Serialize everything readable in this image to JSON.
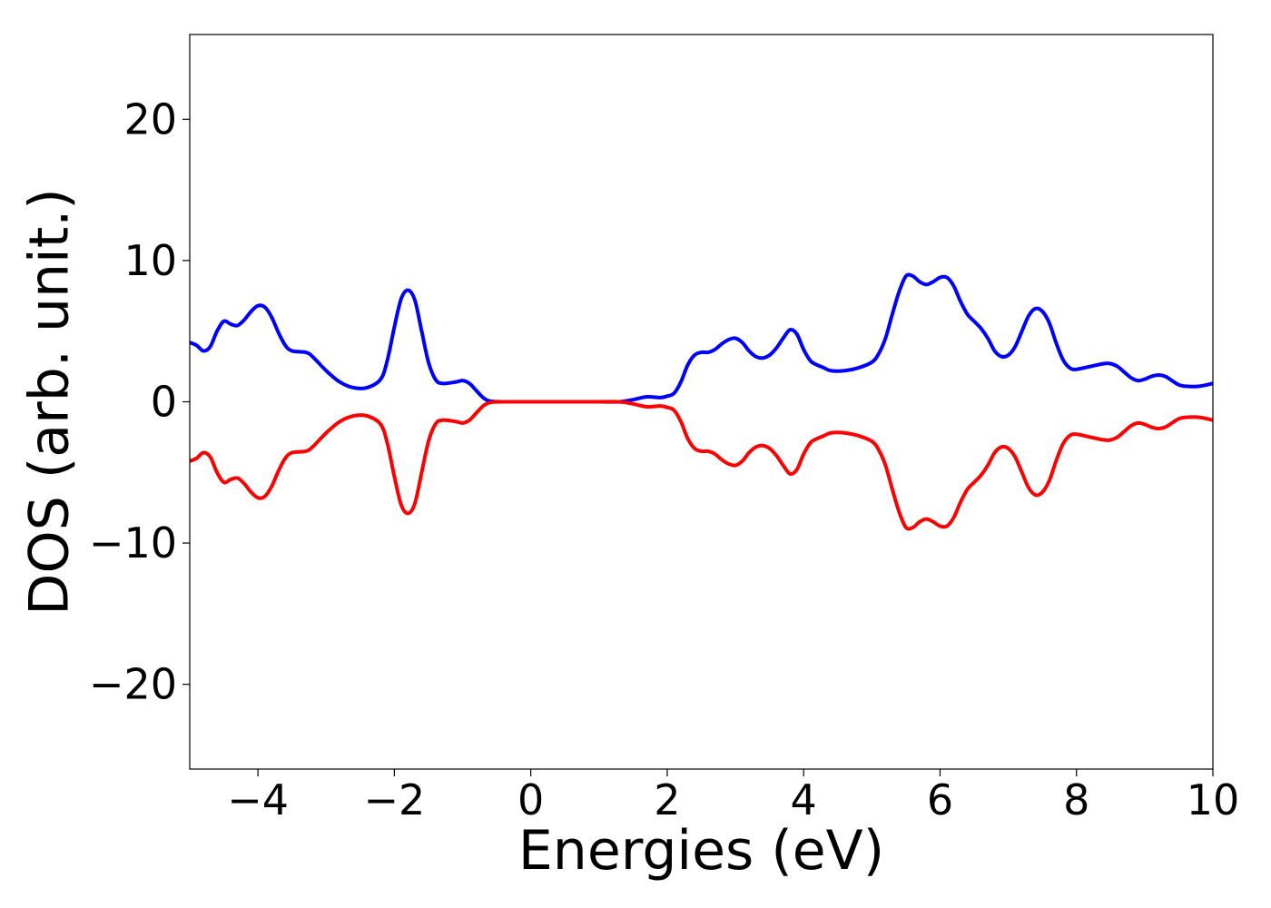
{
  "chart_data": {
    "type": "line",
    "title": "",
    "xlabel": "Energies (eV)",
    "ylabel": "DOS (arb. unit.)",
    "xlim": [
      -5,
      10
    ],
    "ylim": [
      -26,
      26
    ],
    "grid": false,
    "x_ticks": [
      -4,
      -2,
      0,
      2,
      4,
      6,
      8,
      10
    ],
    "y_ticks": [
      -20,
      -10,
      0,
      10,
      20
    ],
    "x_tick_labels": [
      "−4",
      "−2",
      "0",
      "2",
      "4",
      "6",
      "8",
      "10"
    ],
    "y_tick_labels": [
      "−20",
      "−10",
      "0",
      "10",
      "20"
    ],
    "series": [
      {
        "color": "#0000ff",
        "points": [
          [
            -5.0,
            4.2
          ],
          [
            -4.9,
            4.0
          ],
          [
            -4.8,
            3.6
          ],
          [
            -4.7,
            3.9
          ],
          [
            -4.6,
            5.0
          ],
          [
            -4.5,
            5.7
          ],
          [
            -4.4,
            5.5
          ],
          [
            -4.3,
            5.4
          ],
          [
            -4.2,
            5.8
          ],
          [
            -4.1,
            6.4
          ],
          [
            -4.0,
            6.8
          ],
          [
            -3.9,
            6.7
          ],
          [
            -3.8,
            6.0
          ],
          [
            -3.7,
            4.9
          ],
          [
            -3.6,
            4.0
          ],
          [
            -3.5,
            3.6
          ],
          [
            -3.3,
            3.5
          ],
          [
            -3.2,
            3.2
          ],
          [
            -3.0,
            2.2
          ],
          [
            -2.8,
            1.4
          ],
          [
            -2.6,
            1.0
          ],
          [
            -2.4,
            1.0
          ],
          [
            -2.2,
            1.6
          ],
          [
            -2.1,
            3.0
          ],
          [
            -2.0,
            5.3
          ],
          [
            -1.9,
            7.3
          ],
          [
            -1.8,
            7.9
          ],
          [
            -1.7,
            7.2
          ],
          [
            -1.6,
            5.0
          ],
          [
            -1.5,
            2.8
          ],
          [
            -1.4,
            1.6
          ],
          [
            -1.3,
            1.3
          ],
          [
            -1.1,
            1.4
          ],
          [
            -1.0,
            1.5
          ],
          [
            -0.9,
            1.3
          ],
          [
            -0.8,
            0.8
          ],
          [
            -0.7,
            0.3
          ],
          [
            -0.6,
            0.05
          ],
          [
            -0.4,
            0.0
          ],
          [
            0.0,
            0.0
          ],
          [
            0.5,
            0.0
          ],
          [
            1.0,
            0.0
          ],
          [
            1.3,
            0.0
          ],
          [
            1.5,
            0.15
          ],
          [
            1.7,
            0.35
          ],
          [
            1.9,
            0.3
          ],
          [
            2.0,
            0.4
          ],
          [
            2.1,
            0.6
          ],
          [
            2.2,
            1.4
          ],
          [
            2.3,
            2.6
          ],
          [
            2.4,
            3.3
          ],
          [
            2.5,
            3.5
          ],
          [
            2.6,
            3.5
          ],
          [
            2.7,
            3.7
          ],
          [
            2.8,
            4.1
          ],
          [
            2.9,
            4.4
          ],
          [
            3.0,
            4.5
          ],
          [
            3.1,
            4.2
          ],
          [
            3.2,
            3.6
          ],
          [
            3.3,
            3.2
          ],
          [
            3.4,
            3.1
          ],
          [
            3.5,
            3.3
          ],
          [
            3.6,
            3.8
          ],
          [
            3.7,
            4.5
          ],
          [
            3.8,
            5.1
          ],
          [
            3.9,
            4.8
          ],
          [
            4.0,
            3.7
          ],
          [
            4.1,
            2.9
          ],
          [
            4.2,
            2.6
          ],
          [
            4.3,
            2.4
          ],
          [
            4.4,
            2.2
          ],
          [
            4.6,
            2.2
          ],
          [
            4.8,
            2.4
          ],
          [
            5.0,
            2.8
          ],
          [
            5.1,
            3.4
          ],
          [
            5.2,
            4.5
          ],
          [
            5.3,
            6.2
          ],
          [
            5.4,
            7.8
          ],
          [
            5.5,
            8.9
          ],
          [
            5.6,
            8.9
          ],
          [
            5.7,
            8.5
          ],
          [
            5.8,
            8.3
          ],
          [
            5.9,
            8.5
          ],
          [
            6.0,
            8.8
          ],
          [
            6.1,
            8.8
          ],
          [
            6.2,
            8.2
          ],
          [
            6.3,
            7.1
          ],
          [
            6.4,
            6.2
          ],
          [
            6.5,
            5.7
          ],
          [
            6.6,
            5.2
          ],
          [
            6.7,
            4.5
          ],
          [
            6.8,
            3.6
          ],
          [
            6.9,
            3.2
          ],
          [
            7.0,
            3.3
          ],
          [
            7.1,
            3.9
          ],
          [
            7.2,
            5.0
          ],
          [
            7.3,
            6.1
          ],
          [
            7.4,
            6.6
          ],
          [
            7.5,
            6.4
          ],
          [
            7.6,
            5.6
          ],
          [
            7.7,
            4.2
          ],
          [
            7.8,
            3.0
          ],
          [
            7.9,
            2.4
          ],
          [
            8.0,
            2.3
          ],
          [
            8.2,
            2.5
          ],
          [
            8.4,
            2.7
          ],
          [
            8.5,
            2.7
          ],
          [
            8.6,
            2.5
          ],
          [
            8.7,
            2.1
          ],
          [
            8.8,
            1.7
          ],
          [
            8.9,
            1.5
          ],
          [
            9.0,
            1.6
          ],
          [
            9.1,
            1.8
          ],
          [
            9.2,
            1.9
          ],
          [
            9.3,
            1.8
          ],
          [
            9.4,
            1.5
          ],
          [
            9.5,
            1.2
          ],
          [
            9.6,
            1.1
          ],
          [
            9.8,
            1.1
          ],
          [
            10.0,
            1.3
          ]
        ]
      },
      {
        "color": "#ff0000",
        "points": [
          [
            -5.0,
            -4.2
          ],
          [
            -4.9,
            -4.0
          ],
          [
            -4.8,
            -3.6
          ],
          [
            -4.7,
            -3.9
          ],
          [
            -4.6,
            -5.0
          ],
          [
            -4.5,
            -5.7
          ],
          [
            -4.4,
            -5.5
          ],
          [
            -4.3,
            -5.4
          ],
          [
            -4.2,
            -5.8
          ],
          [
            -4.1,
            -6.4
          ],
          [
            -4.0,
            -6.8
          ],
          [
            -3.9,
            -6.7
          ],
          [
            -3.8,
            -6.0
          ],
          [
            -3.7,
            -4.9
          ],
          [
            -3.6,
            -4.0
          ],
          [
            -3.5,
            -3.6
          ],
          [
            -3.3,
            -3.5
          ],
          [
            -3.2,
            -3.2
          ],
          [
            -3.0,
            -2.2
          ],
          [
            -2.8,
            -1.4
          ],
          [
            -2.6,
            -1.0
          ],
          [
            -2.4,
            -1.0
          ],
          [
            -2.2,
            -1.6
          ],
          [
            -2.1,
            -3.0
          ],
          [
            -2.0,
            -5.3
          ],
          [
            -1.9,
            -7.3
          ],
          [
            -1.8,
            -7.9
          ],
          [
            -1.7,
            -7.2
          ],
          [
            -1.6,
            -5.0
          ],
          [
            -1.5,
            -2.8
          ],
          [
            -1.4,
            -1.6
          ],
          [
            -1.3,
            -1.3
          ],
          [
            -1.1,
            -1.4
          ],
          [
            -1.0,
            -1.5
          ],
          [
            -0.9,
            -1.3
          ],
          [
            -0.8,
            -0.8
          ],
          [
            -0.7,
            -0.3
          ],
          [
            -0.6,
            -0.05
          ],
          [
            -0.4,
            0.0
          ],
          [
            0.0,
            0.0
          ],
          [
            0.5,
            0.0
          ],
          [
            1.0,
            0.0
          ],
          [
            1.3,
            0.0
          ],
          [
            1.5,
            -0.15
          ],
          [
            1.7,
            -0.35
          ],
          [
            1.9,
            -0.3
          ],
          [
            2.0,
            -0.4
          ],
          [
            2.1,
            -0.6
          ],
          [
            2.2,
            -1.4
          ],
          [
            2.3,
            -2.6
          ],
          [
            2.4,
            -3.3
          ],
          [
            2.5,
            -3.5
          ],
          [
            2.6,
            -3.5
          ],
          [
            2.7,
            -3.7
          ],
          [
            2.8,
            -4.1
          ],
          [
            2.9,
            -4.4
          ],
          [
            3.0,
            -4.5
          ],
          [
            3.1,
            -4.2
          ],
          [
            3.2,
            -3.6
          ],
          [
            3.3,
            -3.2
          ],
          [
            3.4,
            -3.1
          ],
          [
            3.5,
            -3.3
          ],
          [
            3.6,
            -3.8
          ],
          [
            3.7,
            -4.5
          ],
          [
            3.8,
            -5.1
          ],
          [
            3.9,
            -4.8
          ],
          [
            4.0,
            -3.7
          ],
          [
            4.1,
            -2.9
          ],
          [
            4.2,
            -2.6
          ],
          [
            4.3,
            -2.4
          ],
          [
            4.4,
            -2.2
          ],
          [
            4.6,
            -2.2
          ],
          [
            4.8,
            -2.4
          ],
          [
            5.0,
            -2.8
          ],
          [
            5.1,
            -3.4
          ],
          [
            5.2,
            -4.5
          ],
          [
            5.3,
            -6.2
          ],
          [
            5.4,
            -7.8
          ],
          [
            5.5,
            -8.9
          ],
          [
            5.6,
            -8.9
          ],
          [
            5.7,
            -8.5
          ],
          [
            5.8,
            -8.3
          ],
          [
            5.9,
            -8.5
          ],
          [
            6.0,
            -8.8
          ],
          [
            6.1,
            -8.8
          ],
          [
            6.2,
            -8.2
          ],
          [
            6.3,
            -7.1
          ],
          [
            6.4,
            -6.2
          ],
          [
            6.5,
            -5.7
          ],
          [
            6.6,
            -5.2
          ],
          [
            6.7,
            -4.5
          ],
          [
            6.8,
            -3.6
          ],
          [
            6.9,
            -3.2
          ],
          [
            7.0,
            -3.3
          ],
          [
            7.1,
            -3.9
          ],
          [
            7.2,
            -5.0
          ],
          [
            7.3,
            -6.1
          ],
          [
            7.4,
            -6.6
          ],
          [
            7.5,
            -6.4
          ],
          [
            7.6,
            -5.6
          ],
          [
            7.7,
            -4.2
          ],
          [
            7.8,
            -3.0
          ],
          [
            7.9,
            -2.4
          ],
          [
            8.0,
            -2.3
          ],
          [
            8.2,
            -2.5
          ],
          [
            8.4,
            -2.7
          ],
          [
            8.5,
            -2.7
          ],
          [
            8.6,
            -2.5
          ],
          [
            8.7,
            -2.1
          ],
          [
            8.8,
            -1.7
          ],
          [
            8.9,
            -1.5
          ],
          [
            9.0,
            -1.6
          ],
          [
            9.1,
            -1.8
          ],
          [
            9.2,
            -1.9
          ],
          [
            9.3,
            -1.8
          ],
          [
            9.4,
            -1.5
          ],
          [
            9.5,
            -1.2
          ],
          [
            9.6,
            -1.1
          ],
          [
            9.8,
            -1.1
          ],
          [
            10.0,
            -1.3
          ]
        ]
      }
    ]
  }
}
